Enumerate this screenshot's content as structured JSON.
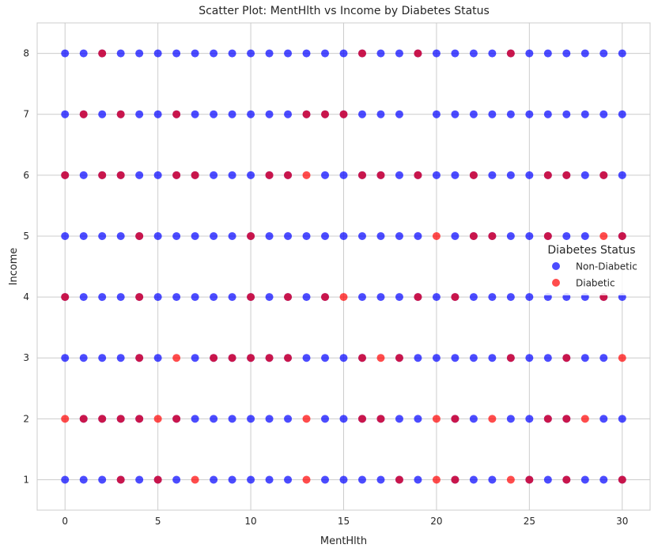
{
  "chart_data": {
    "type": "scatter",
    "title": "Scatter Plot: MentHlth vs Income by Diabetes Status",
    "xlabel": "MentHlth",
    "ylabel": "Income",
    "xlim": [
      -1.5,
      31.5
    ],
    "ylim": [
      0.5,
      8.5
    ],
    "xticks": [
      0,
      5,
      10,
      15,
      20,
      25,
      30
    ],
    "yticks": [
      1,
      2,
      3,
      4,
      5,
      6,
      7,
      8
    ],
    "grid": true,
    "legend": {
      "title": "Diabetes Status",
      "placement": "right",
      "entries": [
        {
          "label": "Non-Diabetic",
          "color": "#0000ff"
        },
        {
          "label": "Diabetic",
          "color": "#ff0000"
        }
      ]
    },
    "marker_alpha": 0.7,
    "series": [
      {
        "name": "Non-Diabetic",
        "color": "#0000ff",
        "points": {
          "8": [
            0,
            1,
            2,
            3,
            4,
            5,
            6,
            7,
            8,
            9,
            10,
            11,
            12,
            13,
            14,
            15,
            16,
            17,
            18,
            19,
            20,
            21,
            22,
            23,
            24,
            25,
            26,
            27,
            28,
            29,
            30
          ],
          "7": [
            0,
            1,
            2,
            3,
            4,
            5,
            6,
            7,
            8,
            9,
            10,
            11,
            12,
            13,
            14,
            15,
            16,
            17,
            18,
            20,
            21,
            22,
            23,
            24,
            25,
            26,
            27,
            28,
            29,
            30
          ],
          "6": [
            0,
            1,
            2,
            3,
            4,
            5,
            6,
            7,
            8,
            9,
            10,
            11,
            12,
            14,
            15,
            16,
            17,
            18,
            19,
            20,
            21,
            22,
            23,
            24,
            25,
            26,
            27,
            28,
            29,
            30
          ],
          "5": [
            0,
            1,
            2,
            3,
            4,
            5,
            6,
            7,
            8,
            9,
            10,
            11,
            12,
            13,
            14,
            15,
            16,
            17,
            18,
            19,
            21,
            22,
            23,
            24,
            25,
            26,
            27,
            28,
            30
          ],
          "4": [
            0,
            1,
            2,
            3,
            4,
            5,
            6,
            7,
            8,
            9,
            10,
            11,
            12,
            13,
            14,
            16,
            17,
            18,
            19,
            20,
            21,
            22,
            23,
            24,
            25,
            26,
            27,
            28,
            29,
            30
          ],
          "3": [
            0,
            1,
            2,
            3,
            4,
            5,
            7,
            8,
            9,
            10,
            11,
            12,
            13,
            14,
            15,
            16,
            18,
            19,
            20,
            21,
            22,
            23,
            24,
            25,
            26,
            27,
            28,
            29
          ],
          "2": [
            1,
            2,
            3,
            4,
            6,
            7,
            8,
            9,
            10,
            11,
            12,
            14,
            15,
            16,
            17,
            18,
            19,
            21,
            22,
            24,
            25,
            26,
            27,
            29,
            30
          ],
          "1": [
            0,
            1,
            2,
            3,
            4,
            5,
            6,
            8,
            9,
            10,
            11,
            12,
            14,
            15,
            16,
            17,
            18,
            19,
            21,
            22,
            23,
            25,
            26,
            27,
            28,
            29,
            30
          ]
        }
      },
      {
        "name": "Diabetic",
        "color": "#ff0000",
        "points": {
          "8": [
            2,
            16,
            19,
            24
          ],
          "7": [
            1,
            3,
            6,
            13,
            14,
            15
          ],
          "6": [
            0,
            2,
            3,
            6,
            7,
            11,
            12,
            13,
            16,
            17,
            19,
            22,
            26,
            27,
            29
          ],
          "5": [
            4,
            10,
            20,
            22,
            23,
            26,
            29,
            30
          ],
          "4": [
            0,
            4,
            10,
            12,
            14,
            15,
            19,
            21,
            29
          ],
          "3": [
            4,
            6,
            8,
            9,
            10,
            11,
            12,
            16,
            17,
            18,
            24,
            27,
            30
          ],
          "2": [
            0,
            1,
            2,
            3,
            4,
            5,
            6,
            13,
            16,
            17,
            20,
            21,
            23,
            26,
            27,
            28
          ],
          "1": [
            3,
            5,
            7,
            13,
            18,
            20,
            21,
            24,
            25,
            27,
            30
          ]
        }
      }
    ]
  }
}
